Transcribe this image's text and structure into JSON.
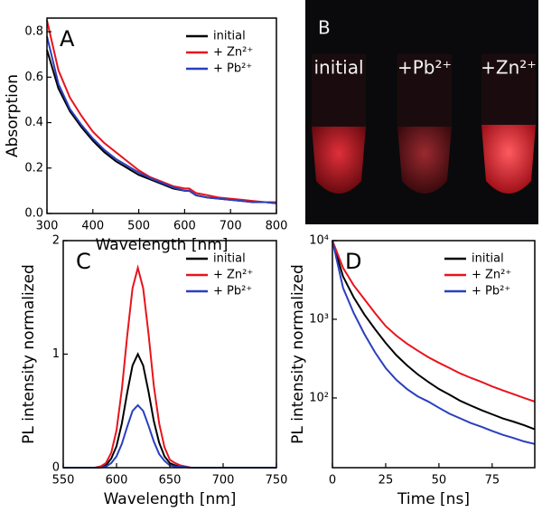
{
  "chart_data": [
    {
      "type": "line",
      "panel": "A",
      "xlabel": "Wavelength [nm]",
      "ylabel": "Absorption",
      "x": [
        300,
        325,
        350,
        375,
        400,
        425,
        450,
        475,
        500,
        525,
        550,
        575,
        600,
        610,
        625,
        650,
        675,
        700,
        725,
        750,
        775,
        800
      ],
      "series": [
        {
          "name": "initial",
          "color": "#000000",
          "values": [
            0.72,
            0.55,
            0.45,
            0.38,
            0.32,
            0.27,
            0.23,
            0.2,
            0.17,
            0.15,
            0.13,
            0.11,
            0.1,
            0.1,
            0.08,
            0.07,
            0.065,
            0.06,
            0.055,
            0.05,
            0.05,
            0.045
          ]
        },
        {
          "name": "+ Zn²⁺",
          "color": "#e8141c",
          "values": [
            0.85,
            0.63,
            0.51,
            0.43,
            0.36,
            0.31,
            0.27,
            0.23,
            0.19,
            0.16,
            0.14,
            0.12,
            0.11,
            0.11,
            0.09,
            0.08,
            0.07,
            0.065,
            0.06,
            0.055,
            0.05,
            0.05
          ]
        },
        {
          "name": "+ Pb²⁺",
          "color": "#2a3fbf",
          "values": [
            0.78,
            0.57,
            0.46,
            0.39,
            0.33,
            0.28,
            0.24,
            0.21,
            0.18,
            0.155,
            0.135,
            0.115,
            0.1,
            0.1,
            0.08,
            0.07,
            0.065,
            0.06,
            0.055,
            0.05,
            0.05,
            0.045
          ]
        }
      ],
      "xlim": [
        300,
        800
      ],
      "ylim": [
        0,
        0.86
      ],
      "xticks": [
        300,
        400,
        500,
        600,
        700,
        800
      ],
      "yticks": [
        {
          "value": 0,
          "label": "0.0"
        },
        0.2,
        0.4,
        0.6,
        0.8
      ],
      "legend": "upper right",
      "log_y": false
    },
    {
      "type": "line",
      "panel": "C",
      "xlabel": "Wavelength [nm]",
      "ylabel": "PL intensity normalized",
      "x": [
        550,
        560,
        570,
        580,
        585,
        590,
        595,
        600,
        605,
        610,
        615,
        620,
        625,
        630,
        635,
        640,
        645,
        650,
        655,
        660,
        670,
        680,
        690,
        700,
        710,
        720,
        730,
        740,
        750
      ],
      "series": [
        {
          "name": "initial",
          "color": "#000000",
          "values": [
            0,
            0,
            0,
            0,
            0.01,
            0.02,
            0.08,
            0.19,
            0.39,
            0.66,
            0.9,
            1.0,
            0.9,
            0.67,
            0.41,
            0.22,
            0.1,
            0.04,
            0.02,
            0.01,
            0,
            0,
            0,
            0,
            0,
            0,
            0,
            0,
            0
          ]
        },
        {
          "name": "+ Zn²⁺",
          "color": "#e8141c",
          "values": [
            0,
            0,
            0,
            0,
            0.01,
            0.04,
            0.13,
            0.33,
            0.69,
            1.16,
            1.58,
            1.76,
            1.58,
            1.18,
            0.72,
            0.39,
            0.18,
            0.07,
            0.04,
            0.02,
            0,
            0,
            0,
            0,
            0,
            0,
            0,
            0,
            0
          ]
        },
        {
          "name": "+ Pb²⁺",
          "color": "#2a3fbf",
          "values": [
            0,
            0,
            0,
            0,
            0,
            0.01,
            0.04,
            0.1,
            0.21,
            0.36,
            0.5,
            0.55,
            0.5,
            0.37,
            0.23,
            0.12,
            0.06,
            0.02,
            0.01,
            0.01,
            0,
            0,
            0,
            0,
            0,
            0,
            0,
            0,
            0
          ]
        }
      ],
      "xlim": [
        550,
        750
      ],
      "ylim": [
        0,
        2
      ],
      "xticks": [
        550,
        600,
        650,
        700,
        750
      ],
      "yticks": [
        0,
        1,
        2
      ],
      "legend": "upper right",
      "log_y": false
    },
    {
      "type": "line",
      "panel": "D",
      "xlabel": "Time [ns]",
      "ylabel": "PL intensity normalized",
      "x": [
        0,
        5,
        10,
        15,
        20,
        25,
        30,
        35,
        40,
        45,
        50,
        55,
        60,
        65,
        70,
        75,
        80,
        85,
        90,
        95
      ],
      "series": [
        {
          "name": "initial",
          "color": "#000000",
          "values": [
            10000,
            3500,
            1900,
            1150,
            750,
            500,
            350,
            260,
            200,
            160,
            130,
            110,
            92,
            80,
            70,
            62,
            55,
            50,
            45,
            40
          ]
        },
        {
          "name": "+ Zn²⁺",
          "color": "#e8141c",
          "values": [
            10000,
            4500,
            2700,
            1800,
            1200,
            820,
            620,
            490,
            400,
            330,
            280,
            240,
            205,
            180,
            160,
            140,
            125,
            112,
            100,
            90
          ]
        },
        {
          "name": "+ Pb²⁺",
          "color": "#2a3fbf",
          "values": [
            10000,
            2500,
            1200,
            650,
            380,
            240,
            170,
            130,
            105,
            90,
            75,
            63,
            55,
            48,
            43,
            38,
            34,
            31,
            28,
            26
          ]
        }
      ],
      "xlim": [
        0,
        95
      ],
      "ylim": [
        13,
        10000
      ],
      "xticks": [
        0,
        25,
        50,
        75
      ],
      "yticks": [
        {
          "value": 100,
          "label": "10²"
        },
        {
          "value": 1000,
          "label": "10³"
        },
        {
          "value": 10000,
          "label": "10⁴"
        }
      ],
      "legend": "upper right",
      "log_y": true
    }
  ],
  "photo": {
    "panel": "B",
    "labels": [
      "initial",
      "+Pb²⁺",
      "+Zn²⁺"
    ]
  }
}
